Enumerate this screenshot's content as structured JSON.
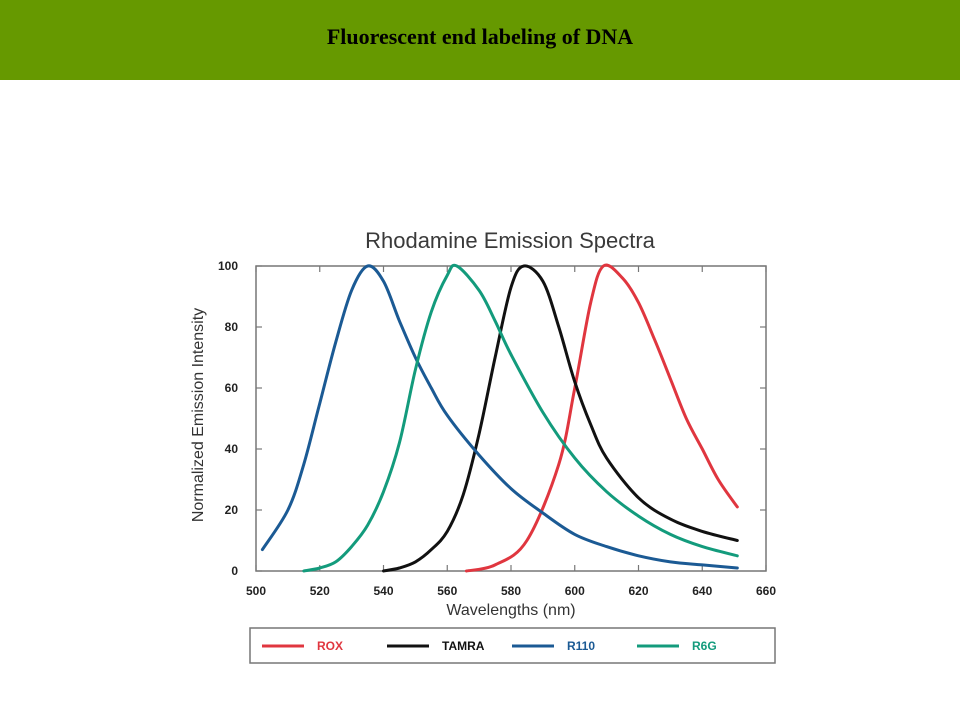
{
  "slide": {
    "title": "Fluorescent end labeling of DNA",
    "title_bar_color": "#669900"
  },
  "chart_data": {
    "type": "line",
    "title": "Rhodamine Emission Spectra",
    "xlabel": "Wavelengths (nm)",
    "ylabel": "Normalized Emission Intensity",
    "xlim": [
      500,
      660
    ],
    "ylim": [
      0,
      100
    ],
    "xticks": [
      500,
      520,
      540,
      560,
      580,
      600,
      620,
      640,
      660
    ],
    "yticks": [
      0,
      20,
      40,
      60,
      80,
      100
    ],
    "grid": false,
    "legend_position": "bottom",
    "series": [
      {
        "name": "ROX",
        "color": "#e0363f",
        "x": [
          566,
          575,
          585,
          595,
          600,
          605,
          609,
          615,
          620,
          625,
          630,
          635,
          640,
          645,
          651
        ],
        "y": [
          0,
          2,
          10,
          35,
          60,
          88,
          100,
          96,
          88,
          76,
          63,
          50,
          40,
          30,
          21
        ]
      },
      {
        "name": "TAMRA",
        "color": "#111111",
        "x": [
          540,
          545,
          550,
          555,
          560,
          565,
          570,
          575,
          580,
          584,
          590,
          595,
          600,
          605,
          610,
          620,
          630,
          640,
          651
        ],
        "y": [
          0,
          1,
          3,
          7,
          13,
          25,
          45,
          70,
          93,
          100,
          95,
          80,
          62,
          48,
          37,
          24,
          17,
          13,
          10
        ]
      },
      {
        "name": "R110",
        "color": "#1b5a94",
        "x": [
          502,
          510,
          515,
          520,
          525,
          530,
          535,
          540,
          545,
          550,
          555,
          560,
          570,
          580,
          590,
          600,
          610,
          620,
          630,
          640,
          651
        ],
        "y": [
          7,
          20,
          35,
          55,
          75,
          92,
          100,
          95,
          82,
          70,
          60,
          51,
          38,
          27,
          19,
          12,
          8,
          5,
          3,
          2,
          1
        ]
      },
      {
        "name": "R6G",
        "color": "#139b7c",
        "x": [
          515,
          520,
          525,
          530,
          535,
          540,
          545,
          550,
          555,
          560,
          563,
          570,
          575,
          580,
          590,
          600,
          610,
          620,
          630,
          640,
          651
        ],
        "y": [
          0,
          1,
          3,
          8,
          15,
          26,
          42,
          66,
          85,
          97,
          100,
          92,
          82,
          71,
          52,
          37,
          26,
          18,
          12,
          8,
          5
        ]
      }
    ]
  }
}
